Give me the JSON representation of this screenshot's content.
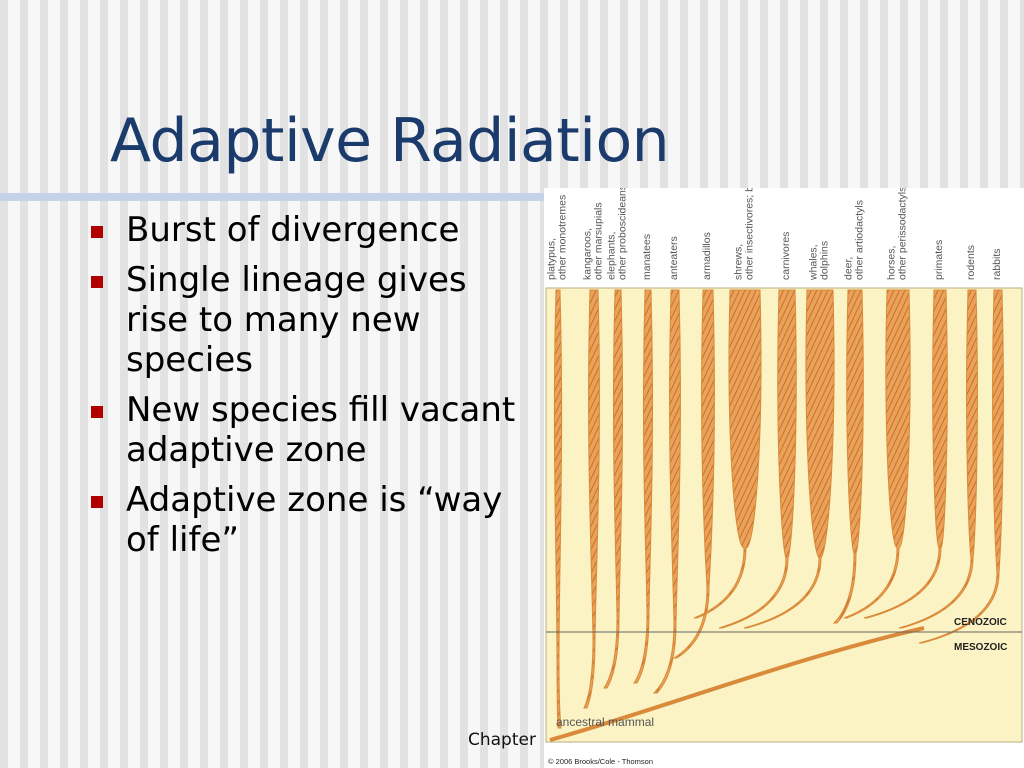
{
  "slide": {
    "title": "Adaptive Radiation",
    "bullets": [
      "Burst of divergence",
      "Single lineage gives rise to many new species",
      "New species fill vacant adaptive zone",
      "Adaptive zone is “way of life”"
    ],
    "footer": "Chapter"
  },
  "figure": {
    "lineages": [
      "platypus, other monotremes",
      "kangaroos, other marsupials",
      "elephants, other proboscideans",
      "manatees",
      "anteaters",
      "armadillos",
      "shrews, other insectivores; bats",
      "carnivores",
      "whales, dolphins",
      "deer, other artiodactyls",
      "horses, other perissodactyls",
      "primates",
      "rodents",
      "rabbits"
    ],
    "era_upper": "CENOZOIC",
    "era_lower": "MESOZOIC",
    "ancestor": "ancestral mammal",
    "copyright": "© 2006 Brooks/Cole - Thomson"
  },
  "colors": {
    "title": "#1a3b6b",
    "bullet": "#b00000",
    "figure_bg": "#fbf3c3",
    "branch": "#d98a3a",
    "branch_hatch": "#c4621c"
  }
}
